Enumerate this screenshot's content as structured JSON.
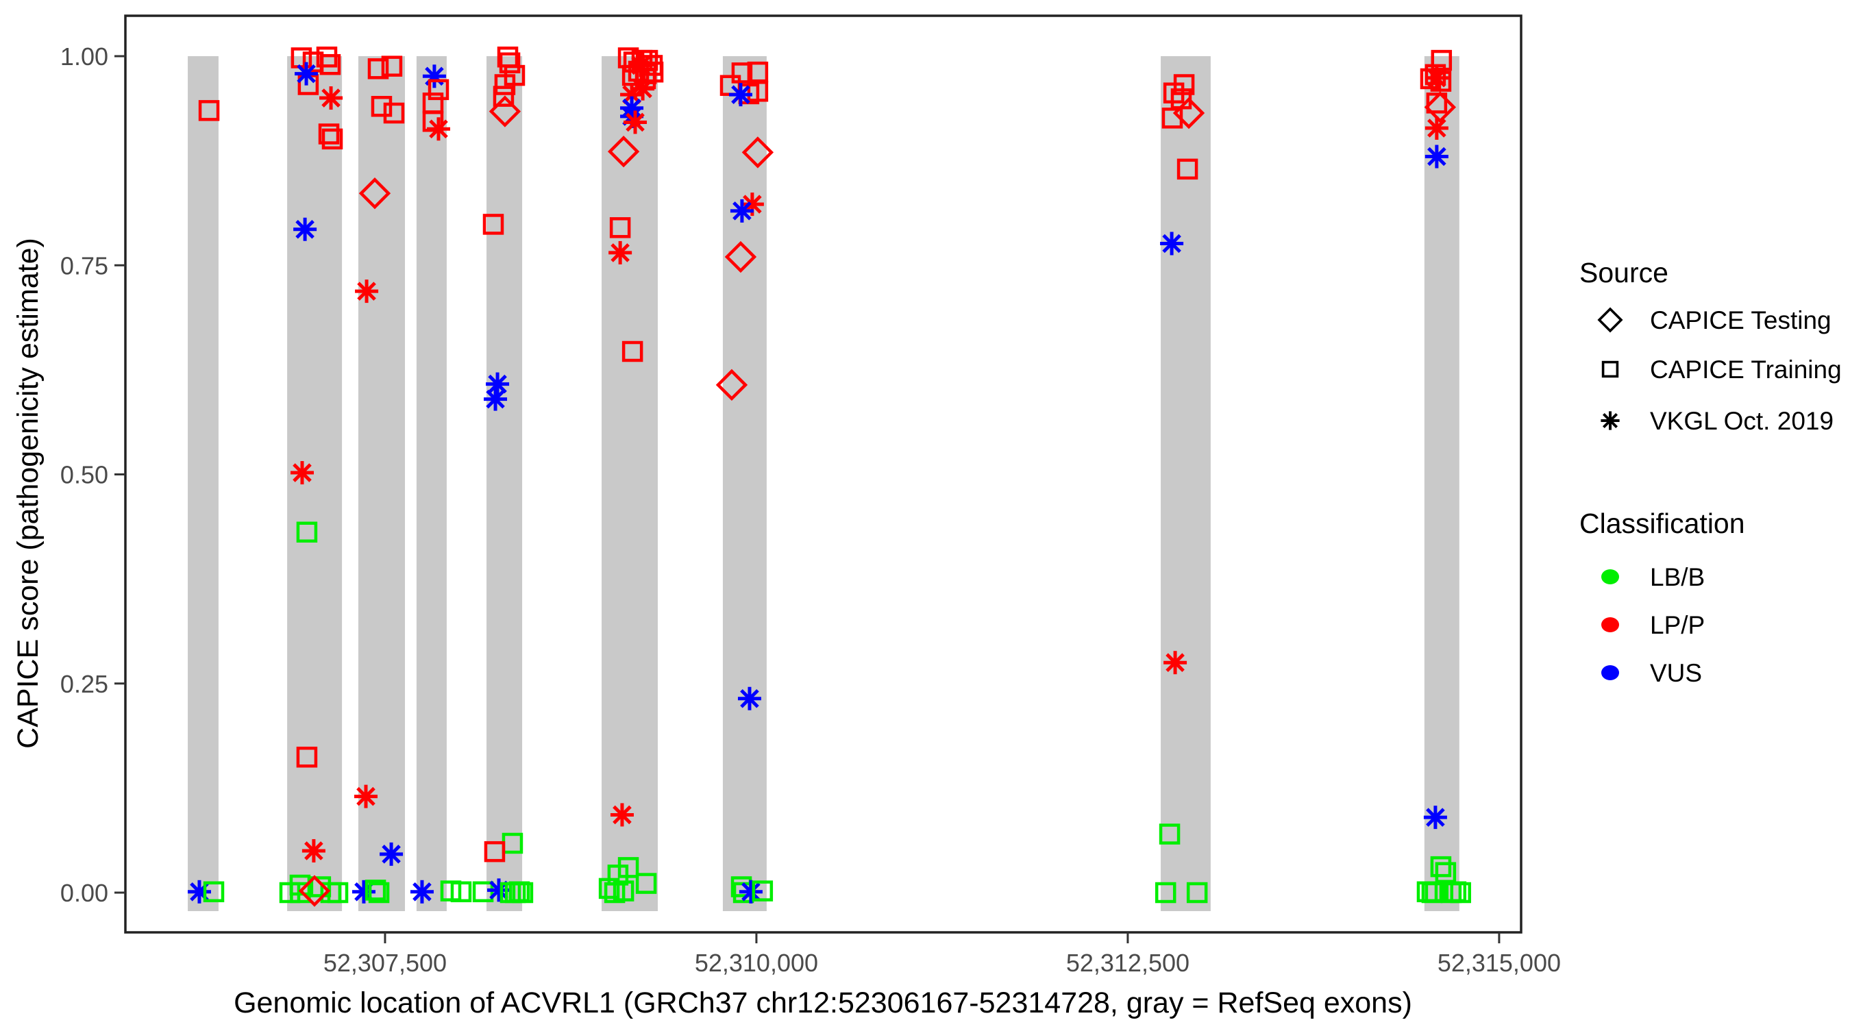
{
  "chart_data": {
    "type": "scatter",
    "title": "",
    "xlabel": "Genomic location of ACVRL1 (GRCh37 chr12:52306167-52314728, gray = RefSeq exons)",
    "ylabel": "CAPICE score (pathogenicity estimate)",
    "xlim": [
      52305752,
      52315148
    ],
    "ylim": [
      -0.05,
      1.05
    ],
    "grid": false,
    "x_axis": {
      "ticks": [
        {
          "value": 52307500,
          "label": "52,307,500"
        },
        {
          "value": 52310000,
          "label": "52,310,000"
        },
        {
          "value": 52312500,
          "label": "52,312,500"
        },
        {
          "value": 52315000,
          "label": "52,315,000"
        }
      ]
    },
    "y_axis": {
      "ticks": [
        {
          "value": 0.0,
          "label": "0.00"
        },
        {
          "value": 0.25,
          "label": "0.25"
        },
        {
          "value": 0.5,
          "label": "0.50"
        },
        {
          "value": 0.75,
          "label": "0.75"
        },
        {
          "value": 1.0,
          "label": "1.00"
        }
      ]
    },
    "exon_color": "#c9c9c9",
    "exons_bp": [
      [
        52306172,
        52306379
      ],
      [
        52306841,
        52307210
      ],
      [
        52307320,
        52307634
      ],
      [
        52307712,
        52307915
      ],
      [
        52308183,
        52308423
      ],
      [
        52308958,
        52309336
      ],
      [
        52309774,
        52310069
      ],
      [
        52312722,
        52313058
      ],
      [
        52314497,
        52314732
      ]
    ],
    "source_shapes": {
      "testing": "diamond",
      "training": "square",
      "vkgl": "asterisk"
    },
    "classification_colors": {
      "LB/B": "#00EE00",
      "LP/P": "#FF0000",
      "VUS": "#0000FF"
    },
    "points": [
      [
        52306315,
        0.935,
        "training",
        "LP/P"
      ],
      [
        52306250,
        0.001,
        "vkgl",
        "VUS"
      ],
      [
        52306347,
        0.001,
        "training",
        "LB/B"
      ],
      [
        52306937,
        0.998,
        "training",
        "LP/P"
      ],
      [
        52307016,
        0.993,
        "training",
        "LP/P"
      ],
      [
        52307108,
        0.999,
        "training",
        "LP/P"
      ],
      [
        52307131,
        0.99,
        "training",
        "LP/P"
      ],
      [
        52306983,
        0.966,
        "training",
        "LP/P"
      ],
      [
        52306970,
        0.979,
        "vkgl",
        "VUS"
      ],
      [
        52307136,
        0.95,
        "vkgl",
        "LP/P"
      ],
      [
        52307122,
        0.907,
        "training",
        "LP/P"
      ],
      [
        52307145,
        0.901,
        "training",
        "LP/P"
      ],
      [
        52306961,
        0.793,
        "vkgl",
        "VUS"
      ],
      [
        52306942,
        0.502,
        "vkgl",
        "LP/P"
      ],
      [
        52306974,
        0.431,
        "training",
        "LB/B"
      ],
      [
        52306974,
        0.162,
        "training",
        "LP/P"
      ],
      [
        52307020,
        0.05,
        "vkgl",
        "LP/P"
      ],
      [
        52306859,
        0.0,
        "training",
        "LB/B"
      ],
      [
        52306928,
        0.009,
        "training",
        "LB/B"
      ],
      [
        52306930,
        0.0,
        "training",
        "LB/B"
      ],
      [
        52307066,
        0.007,
        "training",
        "LB/B"
      ],
      [
        52307135,
        0.0,
        "training",
        "LB/B"
      ],
      [
        52307182,
        0.0,
        "training",
        "LB/B"
      ],
      [
        52307025,
        0.002,
        "testing",
        "LP/P"
      ],
      [
        52307454,
        0.985,
        "training",
        "LP/P"
      ],
      [
        52307546,
        0.988,
        "training",
        "LP/P"
      ],
      [
        52307477,
        0.94,
        "training",
        "LP/P"
      ],
      [
        52307560,
        0.932,
        "training",
        "LP/P"
      ],
      [
        52307431,
        0.836,
        "testing",
        "LP/P"
      ],
      [
        52307376,
        0.719,
        "vkgl",
        "LP/P"
      ],
      [
        52307371,
        0.115,
        "vkgl",
        "LP/P"
      ],
      [
        52307542,
        0.046,
        "vkgl",
        "VUS"
      ],
      [
        52307357,
        0.001,
        "vkgl",
        "VUS"
      ],
      [
        52307436,
        0.003,
        "training",
        "LB/B"
      ],
      [
        52307459,
        0.0,
        "training",
        "LB/B"
      ],
      [
        52307832,
        0.976,
        "vkgl",
        "VUS"
      ],
      [
        52307860,
        0.96,
        "training",
        "LP/P"
      ],
      [
        52307823,
        0.944,
        "training",
        "LP/P"
      ],
      [
        52307823,
        0.922,
        "training",
        "LP/P"
      ],
      [
        52307860,
        0.913,
        "vkgl",
        "LP/P"
      ],
      [
        52307749,
        0.001,
        "vkgl",
        "VUS"
      ],
      [
        52307943,
        0.002,
        "training",
        "LB/B"
      ],
      [
        52308012,
        0.001,
        "training",
        "LB/B"
      ],
      [
        52308326,
        0.999,
        "training",
        "LP/P"
      ],
      [
        52308340,
        0.992,
        "training",
        "LP/P"
      ],
      [
        52308372,
        0.977,
        "training",
        "LP/P"
      ],
      [
        52308307,
        0.966,
        "training",
        "LP/P"
      ],
      [
        52308298,
        0.952,
        "training",
        "LP/P"
      ],
      [
        52308307,
        0.934,
        "testing",
        "LP/P"
      ],
      [
        52308229,
        0.799,
        "training",
        "LP/P"
      ],
      [
        52308257,
        0.608,
        "vkgl",
        "VUS"
      ],
      [
        52308243,
        0.59,
        "vkgl",
        "VUS"
      ],
      [
        52308358,
        0.059,
        "training",
        "LB/B"
      ],
      [
        52308238,
        0.049,
        "training",
        "LP/P"
      ],
      [
        52308160,
        0.001,
        "training",
        "LB/B"
      ],
      [
        52308266,
        0.003,
        "vkgl",
        "VUS"
      ],
      [
        52308344,
        0.0,
        "training",
        "LB/B"
      ],
      [
        52308377,
        0.0,
        "training",
        "LB/B"
      ],
      [
        52308404,
        0.001,
        "training",
        "LB/B"
      ],
      [
        52308427,
        0.0,
        "training",
        "LB/B"
      ],
      [
        52309138,
        0.998,
        "training",
        "LP/P"
      ],
      [
        52309175,
        0.993,
        "training",
        "LP/P"
      ],
      [
        52309230,
        0.995,
        "training",
        "LP/P"
      ],
      [
        52309267,
        0.995,
        "training",
        "LP/P"
      ],
      [
        52309299,
        0.989,
        "training",
        "LP/P"
      ],
      [
        52309207,
        0.982,
        "training",
        "LP/P"
      ],
      [
        52309258,
        0.979,
        "training",
        "LP/P"
      ],
      [
        52309304,
        0.981,
        "training",
        "LP/P"
      ],
      [
        52309166,
        0.977,
        "training",
        "LP/P"
      ],
      [
        52309253,
        0.973,
        "training",
        "LP/P"
      ],
      [
        52309221,
        0.989,
        "vkgl",
        "LP/P"
      ],
      [
        52309235,
        0.961,
        "vkgl",
        "LP/P"
      ],
      [
        52309161,
        0.954,
        "vkgl",
        "LP/P"
      ],
      [
        52309161,
        0.938,
        "vkgl",
        "VUS"
      ],
      [
        52309161,
        0.928,
        "vkgl",
        "VUS"
      ],
      [
        52309184,
        0.921,
        "vkgl",
        "LP/P"
      ],
      [
        52309106,
        0.886,
        "testing",
        "LP/P"
      ],
      [
        52309083,
        0.795,
        "training",
        "LP/P"
      ],
      [
        52309083,
        0.765,
        "vkgl",
        "LP/P"
      ],
      [
        52309166,
        0.647,
        "training",
        "LP/P"
      ],
      [
        52309096,
        0.093,
        "vkgl",
        "LP/P"
      ],
      [
        52309068,
        0.021,
        "training",
        "LB/B"
      ],
      [
        52309138,
        0.03,
        "training",
        "LB/B"
      ],
      [
        52309258,
        0.011,
        "training",
        "LB/B"
      ],
      [
        52309009,
        0.005,
        "training",
        "LB/B"
      ],
      [
        52309046,
        0.0,
        "training",
        "LB/B"
      ],
      [
        52309106,
        0.002,
        "training",
        "LB/B"
      ],
      [
        52309903,
        0.98,
        "training",
        "LP/P"
      ],
      [
        52310009,
        0.981,
        "training",
        "LP/P"
      ],
      [
        52309825,
        0.965,
        "training",
        "LP/P"
      ],
      [
        52310009,
        0.958,
        "training",
        "LP/P"
      ],
      [
        52309949,
        0.955,
        "training",
        "LP/P"
      ],
      [
        52309894,
        0.954,
        "vkgl",
        "VUS"
      ],
      [
        52310009,
        0.885,
        "testing",
        "LP/P"
      ],
      [
        52309972,
        0.823,
        "vkgl",
        "LP/P"
      ],
      [
        52309903,
        0.815,
        "vkgl",
        "VUS"
      ],
      [
        52309894,
        0.76,
        "testing",
        "LP/P"
      ],
      [
        52309834,
        0.607,
        "testing",
        "LP/P"
      ],
      [
        52309954,
        0.232,
        "vkgl",
        "VUS"
      ],
      [
        52309899,
        0.007,
        "training",
        "LB/B"
      ],
      [
        52309913,
        0.0,
        "training",
        "LB/B"
      ],
      [
        52309963,
        0.001,
        "vkgl",
        "VUS"
      ],
      [
        52310041,
        0.002,
        "training",
        "LB/B"
      ],
      [
        52312879,
        0.966,
        "training",
        "LP/P"
      ],
      [
        52312810,
        0.956,
        "training",
        "LP/P"
      ],
      [
        52312860,
        0.949,
        "training",
        "LP/P"
      ],
      [
        52312911,
        0.932,
        "testing",
        "LP/P"
      ],
      [
        52312800,
        0.926,
        "training",
        "LP/P"
      ],
      [
        52312902,
        0.865,
        "training",
        "LP/P"
      ],
      [
        52312796,
        0.776,
        "vkgl",
        "VUS"
      ],
      [
        52312819,
        0.275,
        "vkgl",
        "LP/P"
      ],
      [
        52312782,
        0.07,
        "training",
        "LB/B"
      ],
      [
        52312755,
        0.0,
        "training",
        "LB/B"
      ],
      [
        52312967,
        0.0,
        "training",
        "LB/B"
      ],
      [
        52314612,
        0.995,
        "training",
        "LP/P"
      ],
      [
        52314571,
        0.978,
        "training",
        "LP/P"
      ],
      [
        52314580,
        0.974,
        "vkgl",
        "LP/P"
      ],
      [
        52314539,
        0.973,
        "training",
        "LP/P"
      ],
      [
        52314608,
        0.97,
        "training",
        "LP/P"
      ],
      [
        52314580,
        0.944,
        "training",
        "LP/P"
      ],
      [
        52314603,
        0.939,
        "testing",
        "LP/P"
      ],
      [
        52314580,
        0.914,
        "vkgl",
        "LP/P"
      ],
      [
        52314580,
        0.88,
        "vkgl",
        "VUS"
      ],
      [
        52314571,
        0.09,
        "vkgl",
        "VUS"
      ],
      [
        52314608,
        0.031,
        "training",
        "LB/B"
      ],
      [
        52314640,
        0.024,
        "training",
        "LB/B"
      ],
      [
        52314516,
        0.001,
        "training",
        "LB/B"
      ],
      [
        52314548,
        0.0,
        "training",
        "LB/B"
      ],
      [
        52314571,
        0.001,
        "training",
        "LB/B"
      ],
      [
        52314677,
        0.0,
        "training",
        "LB/B"
      ],
      [
        52314709,
        0.001,
        "training",
        "LB/B"
      ],
      [
        52314741,
        0.0,
        "training",
        "LB/B"
      ]
    ],
    "legend_position": "right"
  },
  "legend": {
    "source": {
      "title": "Source",
      "items": [
        {
          "label": "CAPICE Testing",
          "marker": "diamond"
        },
        {
          "label": "CAPICE Training",
          "marker": "square"
        },
        {
          "label": "VKGL Oct. 2019",
          "marker": "asterisk"
        }
      ]
    },
    "classification": {
      "title": "Classification",
      "items": [
        {
          "label": "LB/B",
          "color": "#00EE00"
        },
        {
          "label": "LP/P",
          "color": "#FF0000"
        },
        {
          "label": "VUS",
          "color": "#0000FF"
        }
      ]
    }
  }
}
